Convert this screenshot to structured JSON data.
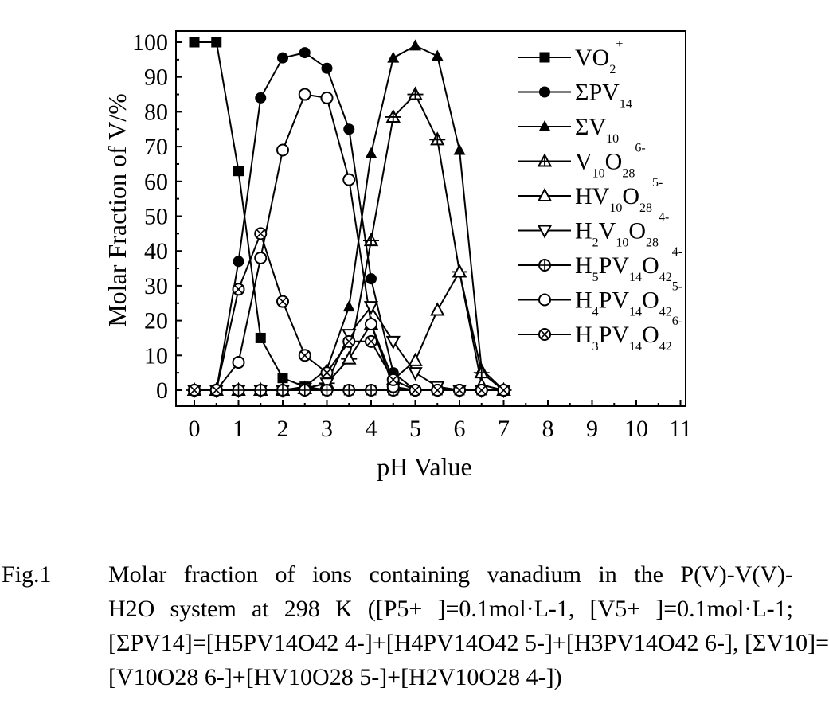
{
  "chart_data": {
    "type": "line",
    "xlabel": "pH Value",
    "ylabel": "Molar Fraction of V/%",
    "xlim": [
      0,
      11
    ],
    "ylim": [
      0,
      100
    ],
    "xticks": [
      "0",
      "1",
      "2",
      "3",
      "4",
      "5",
      "6",
      "7",
      "8",
      "9",
      "10",
      "11"
    ],
    "yticks": [
      "0",
      "10",
      "20",
      "30",
      "40",
      "50",
      "60",
      "70",
      "80",
      "90",
      "100"
    ],
    "grid": false,
    "legend_position": "top-right",
    "x": [
      0,
      0.5,
      1,
      1.5,
      2,
      2.5,
      3,
      3.5,
      4,
      4.5,
      5,
      5.5,
      6,
      6.5,
      7
    ],
    "series": [
      {
        "name": "VO2+",
        "label": {
          "base": "VO",
          "sub": "2",
          "sup": "+"
        },
        "marker": "square-filled",
        "values": [
          100,
          100,
          63,
          15,
          3.5,
          1,
          0,
          0,
          0,
          0,
          0,
          0,
          0,
          0,
          0
        ]
      },
      {
        "name": "ΣPV14",
        "label": {
          "base": "ΣPV",
          "sub": "14",
          "sup": ""
        },
        "marker": "circle-filled",
        "values": [
          0,
          0,
          37,
          84,
          95.5,
          97,
          92.5,
          75,
          32,
          5,
          0,
          0,
          0,
          0,
          0
        ]
      },
      {
        "name": "ΣV10",
        "label": {
          "base": "ΣV",
          "sub": "10",
          "sup": ""
        },
        "marker": "triangle-filled",
        "values": [
          0,
          0,
          0,
          0,
          0,
          1,
          6,
          24,
          68,
          95.5,
          99,
          96,
          69,
          6,
          0
        ]
      },
      {
        "name": "V10O28 6-",
        "label": {
          "base": "V",
          "sub": "10",
          "base2": "O",
          "sub2": "28",
          "sup": "6-"
        },
        "marker": "triangle-cross",
        "values": [
          0,
          0,
          0,
          0,
          0,
          0.5,
          2,
          9,
          43,
          78.5,
          85,
          72,
          34,
          5,
          0
        ]
      },
      {
        "name": "HV10O28 5-",
        "label": {
          "base": "HV",
          "sub": "10",
          "base2": "O",
          "sub2": "28",
          "sup": "5-"
        },
        "marker": "triangle-open",
        "values": [
          0,
          0,
          0,
          0,
          0,
          0.5,
          2,
          9,
          19,
          3,
          8.5,
          23,
          34,
          1.5,
          0
        ]
      },
      {
        "name": "H2V10O28 4-",
        "label": {
          "base": "H",
          "sub": "2",
          "base2": "V",
          "sub2": "10",
          "base3": "O",
          "sub3": "28",
          "sup": "4-"
        },
        "marker": "triangle-down-open",
        "values": [
          0,
          0,
          0,
          0,
          0,
          0.5,
          2,
          16,
          24,
          14,
          5,
          1,
          0,
          0,
          0
        ]
      },
      {
        "name": "H5PV14O42 4-",
        "label": {
          "base": "H",
          "sub": "5",
          "base2": "PV",
          "sub2": "14",
          "base3": "O",
          "sub3": "42",
          "sup": "4-"
        },
        "marker": "circle-plus",
        "values": [
          0,
          0,
          0,
          0,
          0,
          0,
          0,
          0,
          0,
          0,
          0,
          0,
          0,
          0,
          0
        ]
      },
      {
        "name": "H4PV14O42 5-",
        "label": {
          "base": "H",
          "sub": "4",
          "base2": "PV",
          "sub2": "14",
          "base3": "O",
          "sub3": "42",
          "sup": "5-"
        },
        "marker": "circle-open",
        "values": [
          0,
          0,
          8,
          38,
          69,
          85,
          84,
          60.5,
          19,
          1,
          0,
          0,
          0,
          0,
          0
        ]
      },
      {
        "name": "H3PV14O42 6-",
        "label": {
          "base": "H",
          "sub": "3",
          "base2": "PV",
          "sub2": "14",
          "base3": "O",
          "sub3": "42",
          "sup": "6-"
        },
        "marker": "circle-x",
        "values": [
          0,
          0,
          29,
          45,
          25.5,
          10,
          5,
          14,
          14,
          3,
          0,
          0,
          0,
          0,
          0
        ]
      }
    ]
  },
  "caption": {
    "label": "Fig.1",
    "line1": "Molar fraction of ions containing vanadium in the P(V)-V(V)-",
    "line2": "H2O system at 298 K ([P5+ ]=0.1mol·L-1, [V5+ ]=0.1mol·L-1;",
    "line3": "[ΣPV14]=[H5PV14O42 4-]+[H4PV14O42 5-]+[H3PV14O42 6-], [ΣV10]=",
    "line4": "[V10O28 6-]+[HV10O28 5-]+[H2V10O28 4-])"
  }
}
